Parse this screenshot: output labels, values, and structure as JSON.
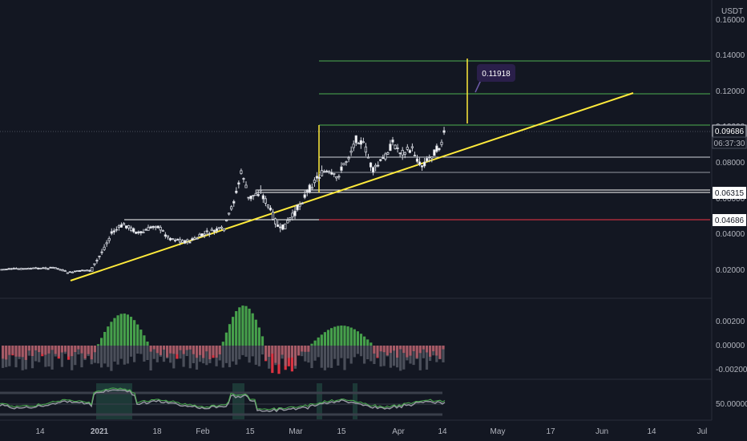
{
  "symbol_quote": "USDT",
  "price_axis": {
    "ticks": [
      "0.16000",
      "0.14000",
      "0.12000",
      "0.10000",
      "0.08000",
      "0.06000",
      "0.04000",
      "0.02000"
    ],
    "tick_values": [
      0.16,
      0.14,
      0.12,
      0.1,
      0.08,
      0.06,
      0.04,
      0.02
    ]
  },
  "time_axis": {
    "labels": [
      "14",
      "2021",
      "18",
      "Feb",
      "15",
      "Mar",
      "15",
      "Apr",
      "14",
      "May",
      "17",
      "Jun",
      "14",
      "Jul"
    ]
  },
  "tags": {
    "current_price": "0.09686",
    "countdown": "06:37:30",
    "level_1": "0.06315",
    "level_2": "0.04686",
    "target_label": "0.11918"
  },
  "osc1_axis": {
    "ticks": [
      "0.00200",
      "0.00000",
      "-0.00200"
    ]
  },
  "osc2_axis": {
    "ticks": [
      "50.00000"
    ]
  },
  "colors": {
    "background": "#131722",
    "up": "#ffffff",
    "down": "#ffffff",
    "trendline": "#ffeb3b",
    "green_lines": "#4caf50",
    "red_line": "#f23645",
    "hist_green": "#4caf50",
    "hist_red": "#f23645",
    "hist_grey": "#787b86",
    "target_box": "#2a1f4a"
  }
}
